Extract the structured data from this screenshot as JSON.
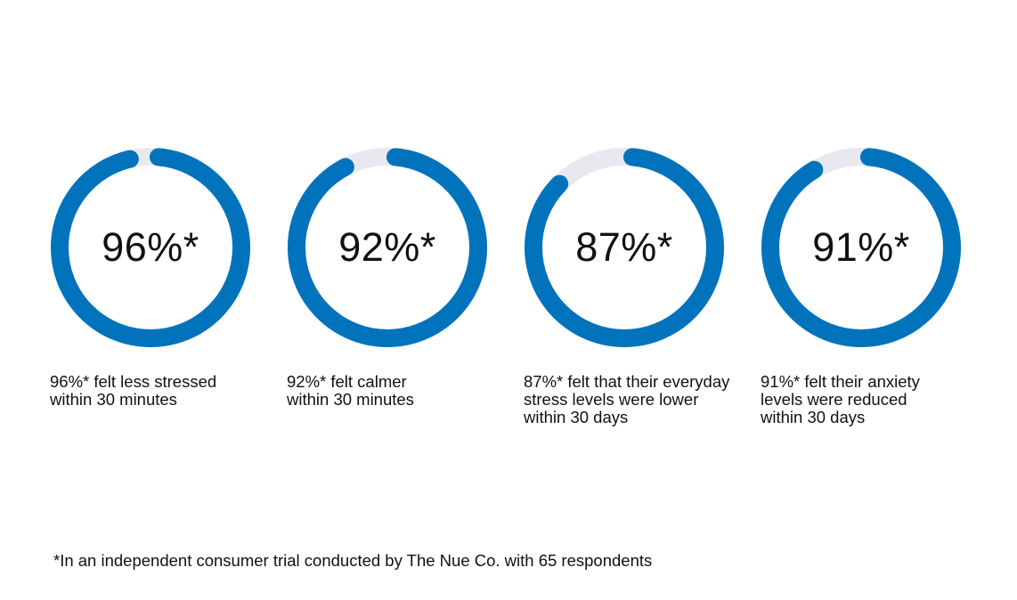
{
  "colors": {
    "progress": "#0073BC",
    "track": "#E8E8EE",
    "text": "#111111",
    "background": "#FFFFFF"
  },
  "stats": [
    {
      "value_label": "96%*",
      "caption": "96%* felt less stressed within 30 minutes"
    },
    {
      "value_label": "92%*",
      "caption": "92%* felt calmer within 30 minutes"
    },
    {
      "value_label": "87%*",
      "caption": "87%* felt that their everyday stress levels were lower within 30 days"
    },
    {
      "value_label": "91%*",
      "caption": "91%* felt their anxiety levels were reduced within 30 days"
    }
  ],
  "footnote": "*In an independent consumer trial conducted by The Nue Co. with 65 respondents",
  "chart_data": {
    "type": "pie",
    "categories": [
      "felt less stressed within 30 minutes",
      "felt calmer within 30 minutes",
      "felt that their everyday stress levels were lower within 30 days",
      "felt their anxiety levels were reduced within 30 days"
    ],
    "values": [
      96,
      92,
      87,
      91
    ],
    "unit": "%",
    "max": 100
  }
}
